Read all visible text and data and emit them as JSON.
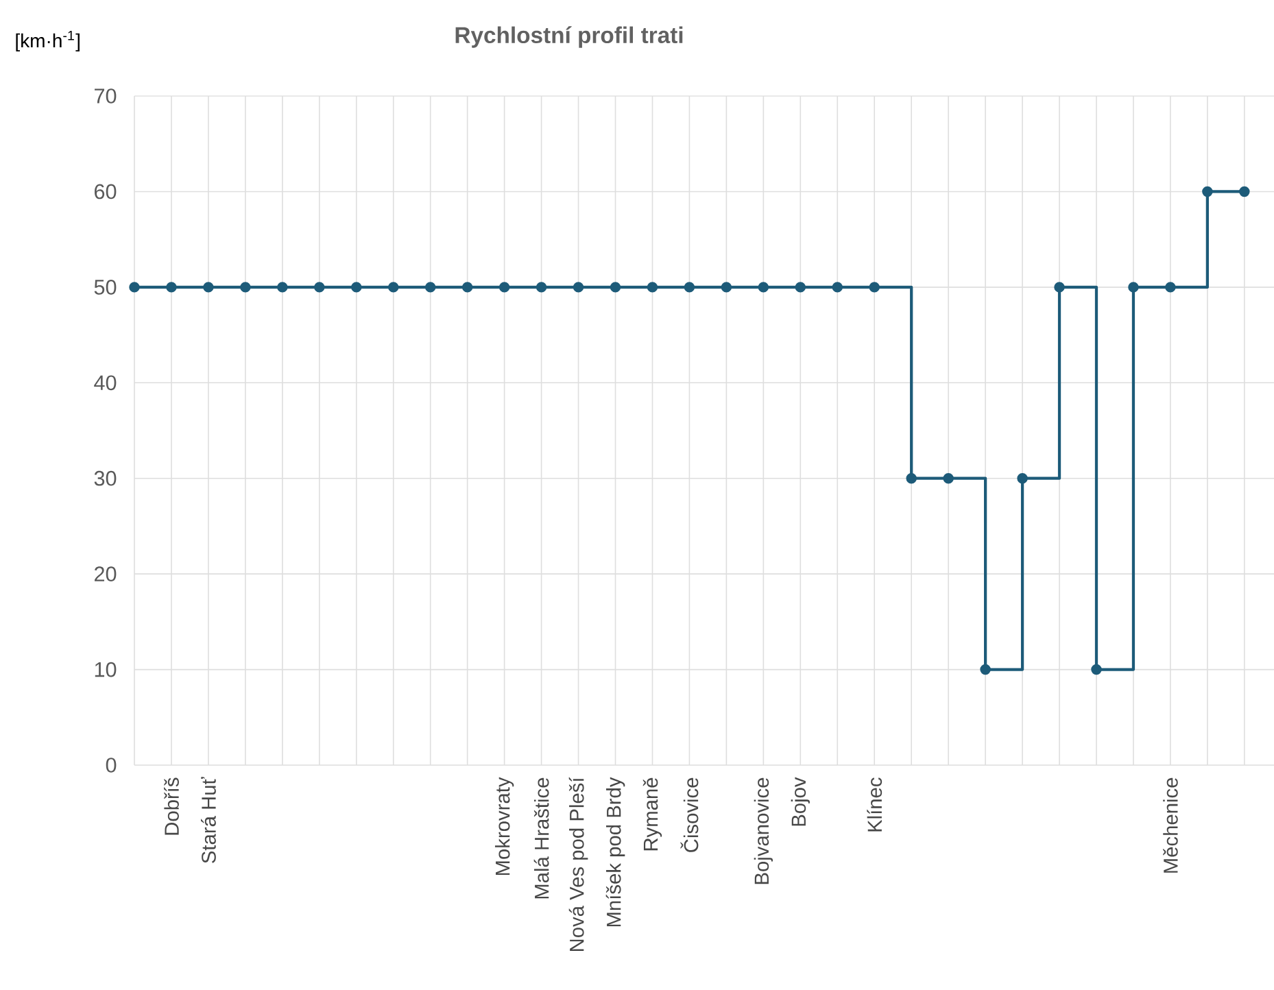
{
  "chart_data": {
    "type": "step",
    "title": "Rychlostní profil trati",
    "ylabel": "[km·h$^{-1}$]",
    "categories": [
      null,
      "Dobříš",
      "Stará Huť",
      null,
      null,
      null,
      null,
      null,
      null,
      null,
      "Mokrovraty",
      "Malá Hraštice",
      "Nová Ves pod Pleší",
      "Mníšek pod Brdy",
      "Rymaně",
      "Čisovice",
      null,
      "Bojvanovice",
      "Bojov",
      null,
      "Klínec",
      null,
      null,
      null,
      null,
      null,
      null,
      null,
      "Měchenice",
      null,
      null
    ],
    "values": [
      50,
      50,
      50,
      50,
      50,
      50,
      50,
      50,
      50,
      50,
      50,
      50,
      50,
      50,
      50,
      50,
      50,
      50,
      50,
      50,
      50,
      30,
      30,
      10,
      30,
      50,
      10,
      50,
      50,
      60,
      60
    ],
    "color": "#1d5b79",
    "marker": "circle",
    "line_style": "solid",
    "grid": true,
    "ylim": [
      0,
      70
    ],
    "yticks": [
      0,
      10,
      20,
      30,
      40,
      50,
      60,
      70
    ]
  }
}
